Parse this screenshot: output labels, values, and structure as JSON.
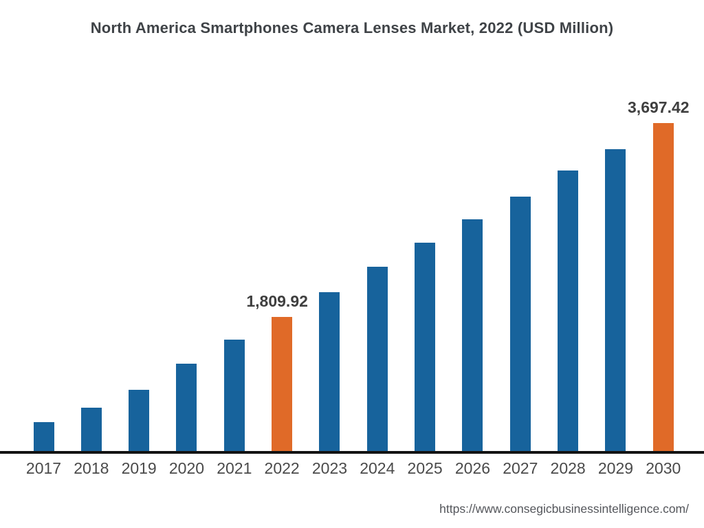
{
  "title": {
    "text": "North America Smartphones Camera Lenses Market, 2022 (USD Million)"
  },
  "footer": {
    "url": "https://www.consegicbusinessintelligence.com/"
  },
  "chart_data": {
    "type": "bar",
    "title": "North America Smartphones Camera Lenses Market, 2022 (USD Million)",
    "unit": "USD Million",
    "categories": [
      "2017",
      "2018",
      "2019",
      "2020",
      "2021",
      "2022",
      "2023",
      "2024",
      "2025",
      "2026",
      "2027",
      "2028",
      "2029",
      "2030"
    ],
    "values": [
      785,
      925,
      1100,
      1355,
      1590,
      1809.92,
      2050,
      2300,
      2535,
      2760,
      2980,
      3235,
      3445,
      3697.42
    ],
    "data_labels": [
      {
        "category": "2022",
        "text": "1,809.92"
      },
      {
        "category": "2030",
        "text": "3,697.42"
      }
    ],
    "highlight_categories": [
      "2022",
      "2030"
    ],
    "colors": {
      "bar": "#17639C",
      "highlight": "#E06A28",
      "axis": "#131313",
      "title": "#3f4347",
      "data_label": "#3f3f3f",
      "tick": "#4a4a4a",
      "source": "#54565b"
    },
    "ylim": [
      505,
      3784
    ],
    "xlabel": "",
    "ylabel": "",
    "grid": false,
    "legend": "none"
  }
}
